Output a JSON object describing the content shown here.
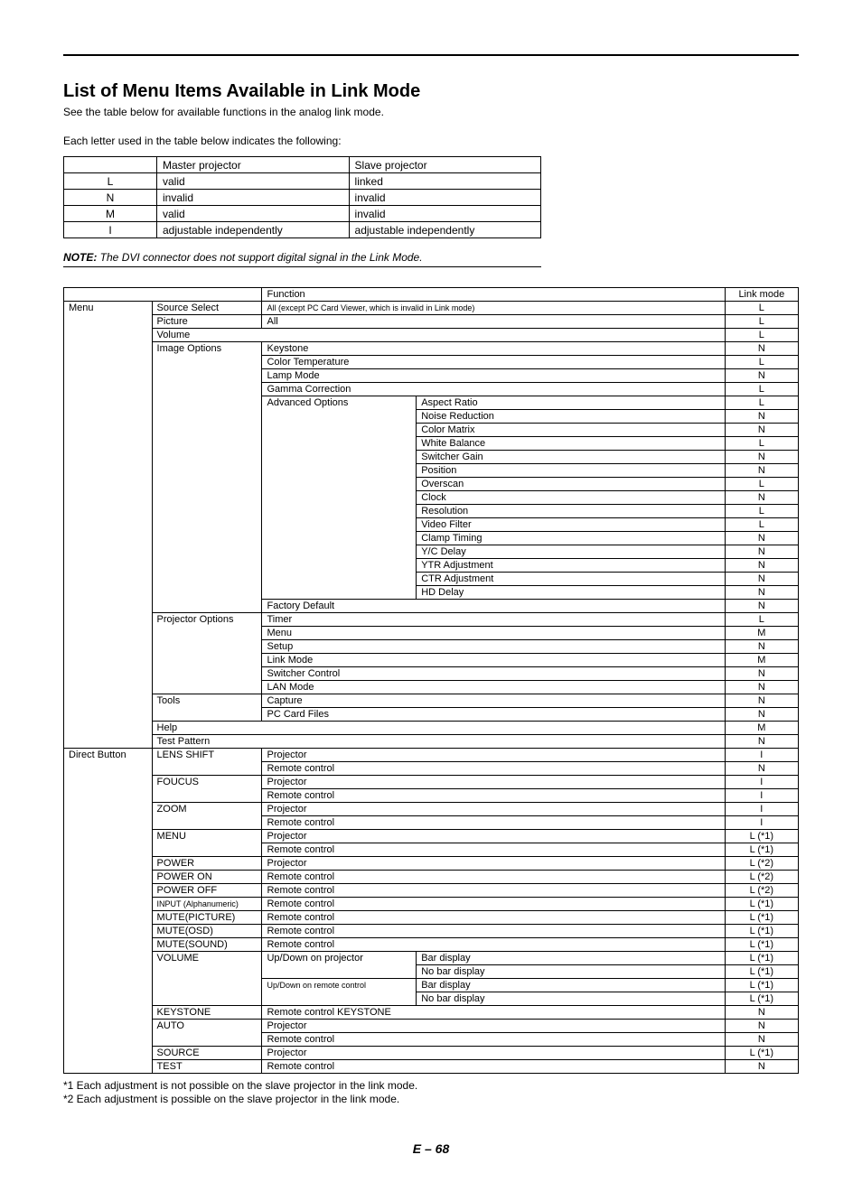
{
  "title": "List of Menu Items Available in Link Mode",
  "intro1": "See the table below for available functions in the analog link mode.",
  "intro2": "Each letter used in the table below indicates the following:",
  "legend": {
    "headers": [
      "",
      "Master projector",
      "Slave projector"
    ],
    "rows": [
      [
        "L",
        "valid",
        "linked"
      ],
      [
        "N",
        "invalid",
        "invalid"
      ],
      [
        "M",
        "valid",
        "invalid"
      ],
      [
        "I",
        "adjustable independently",
        "adjustable independently"
      ]
    ]
  },
  "note_label": "NOTE:",
  "note_text": " The DVI connector does not support digital signal in the Link Mode.",
  "main_header_function": "Function",
  "main_header_linkmode": "Link mode",
  "rows": [
    {
      "c1": "Menu",
      "c2": "Source Select",
      "c3": "All (except PC Card Viewer, which is invalid in Link mode)",
      "c3span": 3,
      "mode": "L",
      "c3small": true
    },
    {
      "c2": "Picture",
      "c3": "All",
      "c3span": 3,
      "mode": "L"
    },
    {
      "c2": "Volume",
      "c2span": 4,
      "mode": "L"
    },
    {
      "c2": "Image Options",
      "c3": "Keystone",
      "c3span": 3,
      "mode": "N"
    },
    {
      "c3": "Color Temperature",
      "c3span": 3,
      "mode": "L"
    },
    {
      "c3": "Lamp Mode",
      "c3span": 3,
      "mode": "N"
    },
    {
      "c3": "Gamma Correction",
      "c3span": 3,
      "mode": "L"
    },
    {
      "c3": "Advanced Options",
      "c4": "Aspect Ratio",
      "c4span": 2,
      "mode": "L"
    },
    {
      "c4": "Noise Reduction",
      "c4span": 2,
      "mode": "N"
    },
    {
      "c4": "Color Matrix",
      "c4span": 2,
      "mode": "N"
    },
    {
      "c4": "White Balance",
      "c4span": 2,
      "mode": "L"
    },
    {
      "c4": "Switcher Gain",
      "c4span": 2,
      "mode": "N"
    },
    {
      "c4": "Position",
      "c4span": 2,
      "mode": "N"
    },
    {
      "c4": "Overscan",
      "c4span": 2,
      "mode": "L"
    },
    {
      "c4": "Clock",
      "c4span": 2,
      "mode": "N"
    },
    {
      "c4": "Resolution",
      "c4span": 2,
      "mode": "L"
    },
    {
      "c4": "Video Filter",
      "c4span": 2,
      "mode": "L"
    },
    {
      "c4": "Clamp Timing",
      "c4span": 2,
      "mode": "N"
    },
    {
      "c4": "Y/C Delay",
      "c4span": 2,
      "mode": "N"
    },
    {
      "c4": "YTR Adjustment",
      "c4span": 2,
      "mode": "N"
    },
    {
      "c4": "CTR Adjustment",
      "c4span": 2,
      "mode": "N"
    },
    {
      "c4": "HD Delay",
      "c4span": 2,
      "mode": "N"
    },
    {
      "c3": "Factory Default",
      "c3span": 3,
      "mode": "N"
    },
    {
      "c2": "Projector Options",
      "c3": "Timer",
      "c3span": 3,
      "mode": "L"
    },
    {
      "c3": "Menu",
      "c3span": 3,
      "mode": "M"
    },
    {
      "c3": "Setup",
      "c3span": 3,
      "mode": "N"
    },
    {
      "c3": "Link Mode",
      "c3span": 3,
      "mode": "M"
    },
    {
      "c3": "Switcher Control",
      "c3span": 3,
      "mode": "N"
    },
    {
      "c3": "LAN Mode",
      "c3span": 3,
      "mode": "N"
    },
    {
      "c2": "Tools",
      "c3": "Capture",
      "c3span": 3,
      "mode": "N"
    },
    {
      "c3": "PC Card Files",
      "c3span": 3,
      "mode": "N"
    },
    {
      "c2": "Help",
      "c2span": 4,
      "mode": "M"
    },
    {
      "c2": "Test Pattern",
      "c2span": 4,
      "mode": "N"
    },
    {
      "c1": "Direct Button",
      "c2": "LENS SHIFT",
      "c3": "Projector",
      "c3span": 3,
      "mode": "I"
    },
    {
      "c3": "Remote control",
      "c3span": 3,
      "mode": "N"
    },
    {
      "c2": "FOUCUS",
      "c3": "Projector",
      "c3span": 3,
      "mode": "I"
    },
    {
      "c3": "Remote control",
      "c3span": 3,
      "mode": "I"
    },
    {
      "c2": "ZOOM",
      "c3": "Projector",
      "c3span": 3,
      "mode": "I"
    },
    {
      "c3": "Remote control",
      "c3span": 3,
      "mode": "I"
    },
    {
      "c2": "MENU",
      "c3": "Projector",
      "c3span": 3,
      "mode": "L (*1)"
    },
    {
      "c3": "Remote control",
      "c3span": 3,
      "mode": "L (*1)"
    },
    {
      "c2": "POWER",
      "c3": "Projector",
      "c3span": 3,
      "mode": "L (*2)"
    },
    {
      "c2": "POWER ON",
      "c3": "Remote control",
      "c3span": 3,
      "mode": "L (*2)"
    },
    {
      "c2": "POWER OFF",
      "c3": "Remote control",
      "c3span": 3,
      "mode": "L (*2)"
    },
    {
      "c2": "INPUT (Alphanumeric)",
      "c3": "Remote control",
      "c3span": 3,
      "mode": "L (*1)",
      "c2small": true
    },
    {
      "c2": "MUTE(PICTURE)",
      "c3": "Remote control",
      "c3span": 3,
      "mode": "L (*1)"
    },
    {
      "c2": "MUTE(OSD)",
      "c3": "Remote control",
      "c3span": 3,
      "mode": "L (*1)"
    },
    {
      "c2": "MUTE(SOUND)",
      "c3": "Remote control",
      "c3span": 3,
      "mode": "L (*1)"
    },
    {
      "c2": "VOLUME",
      "c3": "Up/Down on projector",
      "c4": "Bar display",
      "c4span": 2,
      "mode": "L (*1)"
    },
    {
      "c4": "No bar display",
      "c4span": 2,
      "mode": "L (*1)"
    },
    {
      "c3": "Up/Down on remote control",
      "c4": "Bar display",
      "c4span": 2,
      "mode": "L (*1)",
      "c3small": true
    },
    {
      "c4": "No bar display",
      "c4span": 2,
      "mode": "L (*1)"
    },
    {
      "c2": "KEYSTONE",
      "c3": "Remote control KEYSTONE",
      "c3span": 3,
      "mode": "N"
    },
    {
      "c2": "AUTO",
      "c3": "Projector",
      "c3span": 3,
      "mode": "N"
    },
    {
      "c3": "Remote control",
      "c3span": 3,
      "mode": "N"
    },
    {
      "c2": "SOURCE",
      "c3": "Projector",
      "c3span": 3,
      "mode": "L (*1)"
    },
    {
      "c2": "TEST",
      "c3": "Remote control",
      "c3span": 3,
      "mode": "N"
    }
  ],
  "footnote1": "*1 Each adjustment is not possible on the slave projector in the link mode.",
  "footnote2": "*2 Each adjustment is possible on the slave projector in the link mode.",
  "page_num": "E – 68"
}
